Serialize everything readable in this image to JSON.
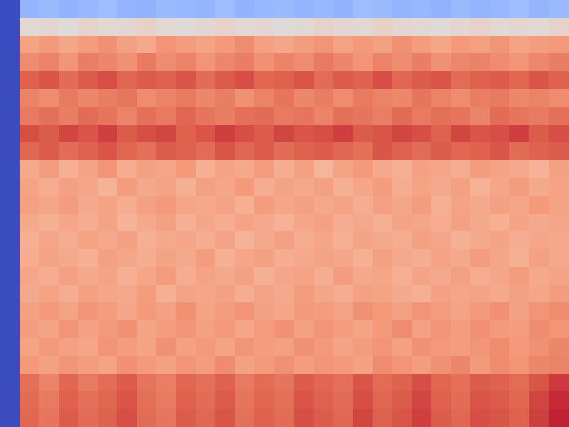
{
  "chart_data": {
    "type": "heatmap",
    "tick_labels": false,
    "clim": [
      0,
      1
    ],
    "cells": [
      [
        0,
        0.34,
        0.36,
        0.33,
        0.35,
        0.37,
        0.34,
        0.33,
        0.36,
        0.35,
        0.34,
        0.37,
        0.33,
        0.35,
        0.36,
        0.34,
        0.35,
        0.33,
        0.37,
        0.36,
        0.34,
        0.35,
        0.33,
        0.36,
        0.34,
        0.35,
        0.37,
        0.34,
        0.36
      ],
      [
        0,
        0.52,
        0.53,
        0.51,
        0.54,
        0.52,
        0.53,
        0.55,
        0.52,
        0.51,
        0.53,
        0.54,
        0.52,
        0.53,
        0.51,
        0.52,
        0.54,
        0.53,
        0.52,
        0.55,
        0.53,
        0.52,
        0.51,
        0.53,
        0.54,
        0.52,
        0.53,
        0.52,
        0.54
      ],
      [
        0,
        0.72,
        0.75,
        0.71,
        0.74,
        0.77,
        0.73,
        0.7,
        0.76,
        0.74,
        0.72,
        0.75,
        0.78,
        0.73,
        0.71,
        0.74,
        0.76,
        0.72,
        0.75,
        0.73,
        0.77,
        0.74,
        0.71,
        0.75,
        0.73,
        0.76,
        0.72,
        0.74,
        0.75
      ],
      [
        0,
        0.78,
        0.8,
        0.76,
        0.81,
        0.79,
        0.77,
        0.82,
        0.78,
        0.8,
        0.76,
        0.79,
        0.81,
        0.77,
        0.8,
        0.78,
        0.82,
        0.79,
        0.76,
        0.8,
        0.78,
        0.81,
        0.77,
        0.79,
        0.8,
        0.78,
        0.76,
        0.79,
        0.81
      ],
      [
        0,
        0.87,
        0.89,
        0.85,
        0.88,
        0.9,
        0.86,
        0.88,
        0.87,
        0.89,
        0.85,
        0.88,
        0.9,
        0.86,
        0.87,
        0.89,
        0.85,
        0.88,
        0.87,
        0.9,
        0.86,
        0.88,
        0.89,
        0.85,
        0.87,
        0.88,
        0.86,
        0.89,
        0.87
      ],
      [
        0,
        0.8,
        0.78,
        0.82,
        0.79,
        0.81,
        0.83,
        0.78,
        0.8,
        0.82,
        0.79,
        0.81,
        0.77,
        0.8,
        0.83,
        0.79,
        0.81,
        0.78,
        0.82,
        0.8,
        0.79,
        0.83,
        0.8,
        0.78,
        0.81,
        0.82,
        0.79,
        0.8,
        0.78
      ],
      [
        0,
        0.82,
        0.84,
        0.81,
        0.85,
        0.83,
        0.8,
        0.84,
        0.82,
        0.86,
        0.83,
        0.81,
        0.84,
        0.85,
        0.82,
        0.83,
        0.8,
        0.84,
        0.83,
        0.81,
        0.85,
        0.82,
        0.84,
        0.83,
        0.8,
        0.85,
        0.83,
        0.82,
        0.84
      ],
      [
        0,
        0.9,
        0.88,
        0.91,
        0.89,
        0.92,
        0.88,
        0.9,
        0.91,
        0.87,
        0.89,
        0.92,
        0.9,
        0.88,
        0.91,
        0.89,
        0.9,
        0.92,
        0.88,
        0.89,
        0.91,
        0.9,
        0.87,
        0.91,
        0.89,
        0.9,
        0.92,
        0.88,
        0.9
      ],
      [
        0,
        0.86,
        0.88,
        0.85,
        0.87,
        0.89,
        0.86,
        0.84,
        0.88,
        0.87,
        0.85,
        0.89,
        0.86,
        0.88,
        0.85,
        0.87,
        0.88,
        0.86,
        0.84,
        0.89,
        0.87,
        0.85,
        0.88,
        0.86,
        0.87,
        0.89,
        0.85,
        0.87,
        0.88
      ],
      [
        0,
        0.7,
        0.74,
        0.68,
        0.72,
        0.76,
        0.69,
        0.73,
        0.71,
        0.75,
        0.68,
        0.72,
        0.7,
        0.74,
        0.69,
        0.73,
        0.66,
        0.72,
        0.75,
        0.7,
        0.68,
        0.73,
        0.71,
        0.69,
        0.74,
        0.72,
        0.7,
        0.67,
        0.73
      ],
      [
        0,
        0.72,
        0.69,
        0.73,
        0.71,
        0.67,
        0.74,
        0.7,
        0.72,
        0.68,
        0.73,
        0.71,
        0.75,
        0.69,
        0.72,
        0.7,
        0.73,
        0.68,
        0.71,
        0.74,
        0.69,
        0.72,
        0.7,
        0.73,
        0.67,
        0.71,
        0.74,
        0.7,
        0.72
      ],
      [
        0,
        0.73,
        0.71,
        0.74,
        0.7,
        0.72,
        0.69,
        0.73,
        0.75,
        0.71,
        0.7,
        0.72,
        0.68,
        0.74,
        0.71,
        0.73,
        0.7,
        0.72,
        0.69,
        0.73,
        0.71,
        0.74,
        0.68,
        0.72,
        0.7,
        0.73,
        0.71,
        0.75,
        0.72
      ],
      [
        0,
        0.7,
        0.68,
        0.71,
        0.69,
        0.72,
        0.67,
        0.7,
        0.73,
        0.68,
        0.71,
        0.69,
        0.72,
        0.7,
        0.67,
        0.71,
        0.73,
        0.69,
        0.7,
        0.68,
        0.72,
        0.71,
        0.69,
        0.73,
        0.7,
        0.68,
        0.72,
        0.7,
        0.71
      ],
      [
        0,
        0.68,
        0.71,
        0.69,
        0.72,
        0.7,
        0.73,
        0.68,
        0.7,
        0.71,
        0.69,
        0.72,
        0.67,
        0.7,
        0.73,
        0.69,
        0.71,
        0.68,
        0.72,
        0.7,
        0.69,
        0.73,
        0.71,
        0.68,
        0.7,
        0.72,
        0.69,
        0.71,
        0.7
      ],
      [
        0,
        0.69,
        0.72,
        0.7,
        0.68,
        0.73,
        0.71,
        0.69,
        0.72,
        0.7,
        0.74,
        0.68,
        0.71,
        0.73,
        0.69,
        0.7,
        0.72,
        0.71,
        0.68,
        0.73,
        0.7,
        0.69,
        0.72,
        0.7,
        0.74,
        0.71,
        0.68,
        0.73,
        0.7
      ],
      [
        0,
        0.71,
        0.69,
        0.73,
        0.7,
        0.72,
        0.68,
        0.71,
        0.74,
        0.69,
        0.72,
        0.7,
        0.73,
        0.68,
        0.71,
        0.72,
        0.69,
        0.74,
        0.7,
        0.71,
        0.68,
        0.72,
        0.7,
        0.73,
        0.69,
        0.71,
        0.74,
        0.7,
        0.72
      ],
      [
        0,
        0.7,
        0.72,
        0.69,
        0.73,
        0.71,
        0.7,
        0.74,
        0.68,
        0.72,
        0.71,
        0.73,
        0.69,
        0.72,
        0.7,
        0.74,
        0.71,
        0.69,
        0.73,
        0.72,
        0.7,
        0.68,
        0.73,
        0.71,
        0.72,
        0.7,
        0.73,
        0.71,
        0.74
      ],
      [
        0,
        0.73,
        0.75,
        0.72,
        0.76,
        0.74,
        0.71,
        0.75,
        0.73,
        0.77,
        0.72,
        0.74,
        0.76,
        0.73,
        0.71,
        0.75,
        0.74,
        0.72,
        0.77,
        0.75,
        0.73,
        0.76,
        0.74,
        0.72,
        0.75,
        0.77,
        0.73,
        0.76,
        0.78
      ],
      [
        0,
        0.74,
        0.72,
        0.76,
        0.73,
        0.75,
        0.77,
        0.72,
        0.74,
        0.76,
        0.73,
        0.75,
        0.71,
        0.74,
        0.77,
        0.73,
        0.76,
        0.74,
        0.72,
        0.75,
        0.78,
        0.73,
        0.76,
        0.74,
        0.77,
        0.75,
        0.74,
        0.78,
        0.76
      ],
      [
        0,
        0.72,
        0.75,
        0.73,
        0.71,
        0.76,
        0.74,
        0.72,
        0.77,
        0.73,
        0.75,
        0.72,
        0.76,
        0.74,
        0.73,
        0.77,
        0.75,
        0.72,
        0.74,
        0.76,
        0.73,
        0.77,
        0.75,
        0.74,
        0.76,
        0.78,
        0.75,
        0.77,
        0.79
      ],
      [
        0,
        0.75,
        0.73,
        0.76,
        0.74,
        0.72,
        0.77,
        0.75,
        0.73,
        0.76,
        0.74,
        0.78,
        0.73,
        0.75,
        0.77,
        0.74,
        0.76,
        0.75,
        0.73,
        0.78,
        0.76,
        0.74,
        0.77,
        0.79,
        0.75,
        0.78,
        0.76,
        0.79,
        0.8
      ],
      [
        0,
        0.84,
        0.8,
        0.86,
        0.82,
        0.85,
        0.88,
        0.83,
        0.81,
        0.86,
        0.84,
        0.87,
        0.82,
        0.85,
        0.83,
        0.88,
        0.86,
        0.84,
        0.89,
        0.85,
        0.87,
        0.9,
        0.86,
        0.84,
        0.88,
        0.87,
        0.85,
        0.89,
        0.93
      ],
      [
        0,
        0.85,
        0.82,
        0.87,
        0.84,
        0.86,
        0.89,
        0.84,
        0.82,
        0.87,
        0.85,
        0.88,
        0.83,
        0.86,
        0.84,
        0.89,
        0.87,
        0.85,
        0.9,
        0.86,
        0.88,
        0.91,
        0.87,
        0.85,
        0.89,
        0.88,
        0.86,
        0.91,
        0.95
      ],
      [
        0,
        0.86,
        0.83,
        0.88,
        0.85,
        0.87,
        0.9,
        0.85,
        0.83,
        0.88,
        0.86,
        0.89,
        0.84,
        0.87,
        0.85,
        0.9,
        0.88,
        0.86,
        0.91,
        0.87,
        0.89,
        0.92,
        0.88,
        0.86,
        0.9,
        0.89,
        0.87,
        0.92,
        0.96
      ]
    ]
  }
}
